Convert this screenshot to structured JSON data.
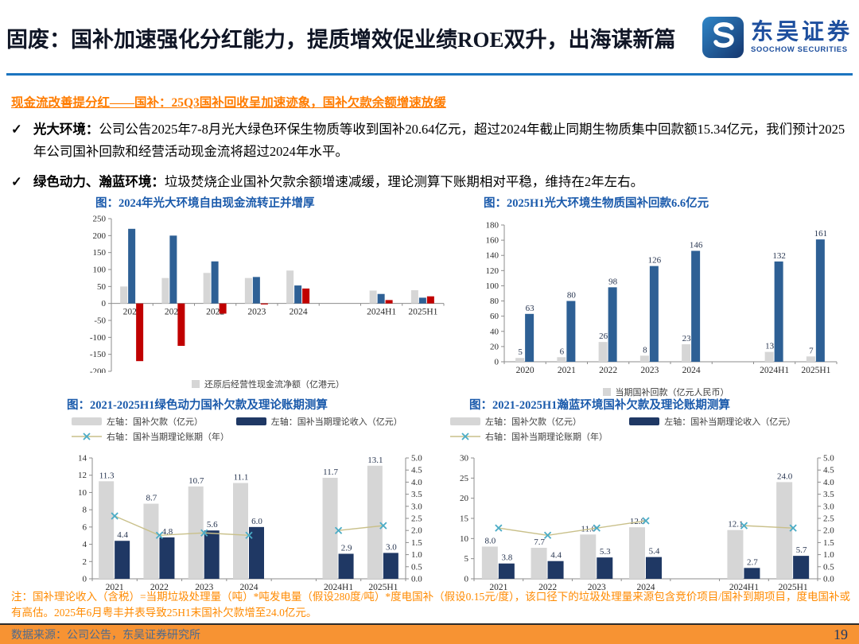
{
  "header": {
    "title": "固废：国补加速强化分红能力，提质增效促业绩ROE双升，出海谋新篇",
    "logo": {
      "cn": "东吴证券",
      "en": "SOOCHOW SECURITIES"
    }
  },
  "section": {
    "subtitle": "现金流改善提分红——国补：25Q3国补回收呈加速迹象，国补欠款余额增速放缓",
    "check_glyph": "✓",
    "bullets": [
      {
        "label": "光大环境：",
        "text": "公司公告2025年7-8月光大绿色环保生物质等收到国补20.64亿元，超过2024年截止同期生物质集中回款额15.34亿元，我们预计2025年公司国补回款和经营活动现金流将超过2024年水平。"
      },
      {
        "label": "绿色动力、瀚蓝环境：",
        "text": "垃圾焚烧企业国补欠款余额增速减缓，理论测算下账期相对平稳，维持在2年左右。"
      }
    ]
  },
  "chart_data": [
    {
      "type": "bar",
      "title": "图：2024年光大环境自由现金流转正并增厚",
      "categories": [
        "2020",
        "2021",
        "2022",
        "2023",
        "2024",
        "",
        "2024H1",
        "2025H1"
      ],
      "series": [
        {
          "name": "还原后经营性现金流净额（亿港元）",
          "color": "#d6d6d6",
          "in_legend": true,
          "labels": false,
          "values": [
            50,
            75,
            90,
            75,
            97,
            null,
            38,
            39
          ]
        },
        {
          "name": "",
          "color": "#2e6095",
          "labels": false,
          "values": [
            220,
            200,
            124,
            78,
            53,
            null,
            28,
            17
          ]
        },
        {
          "name": "",
          "color": "#c00000",
          "labels": false,
          "values": [
            -170,
            -125,
            -30,
            -3,
            44,
            null,
            10,
            21
          ]
        }
      ],
      "ylim": [
        -200,
        250
      ],
      "ystep": 50,
      "grid": false,
      "legend_position": "bottom"
    },
    {
      "type": "bar",
      "title": "图：2025H1光大环境生物质国补回款6.6亿元",
      "categories": [
        "2020",
        "2021",
        "2022",
        "2023",
        "2024",
        "",
        "2024H1",
        "2025H1"
      ],
      "series": [
        {
          "name": "当期国补回款（亿元人民币）",
          "color": "#d6d6d6",
          "in_legend": true,
          "labels": true,
          "label_decimals": 0,
          "values": [
            5,
            6,
            26,
            8,
            23,
            null,
            13,
            7
          ]
        },
        {
          "name": "",
          "color": "#2e6095",
          "labels": true,
          "label_decimals": 0,
          "values": [
            63,
            80,
            98,
            126,
            146,
            null,
            132,
            161
          ]
        }
      ],
      "ylim": [
        0,
        180
      ],
      "ystep": 20,
      "grid": false,
      "legend_position": "bottom"
    },
    {
      "type": "bar-line",
      "title": "图：2021-2025H1绿色动力国补欠款及理论账期测算",
      "categories": [
        "2021",
        "2022",
        "2023",
        "2024",
        "",
        "2024H1",
        "2025H1"
      ],
      "series": [
        {
          "name": "左轴：国补欠款（亿元）",
          "color": "#d6d6d6",
          "in_legend": true,
          "labels": true,
          "label_decimals": 1,
          "values": [
            11.3,
            8.7,
            10.7,
            11.1,
            null,
            11.7,
            13.1
          ]
        },
        {
          "name": "左轴：国补当期理论收入（亿元）",
          "color": "#1f3864",
          "in_legend": true,
          "labels": true,
          "label_decimals": 1,
          "values": [
            4.4,
            4.8,
            5.6,
            6.0,
            null,
            2.9,
            3.0
          ]
        }
      ],
      "line_series": {
        "name": "右轴：国补当期理论账期（年）",
        "line_color": "#c9c08a",
        "marker_color": "#4bacc6",
        "values": [
          2.6,
          1.8,
          1.9,
          1.8,
          null,
          2.0,
          2.2
        ]
      },
      "ylim": [
        0,
        14
      ],
      "ystep": 2,
      "y2lim": [
        0,
        5
      ],
      "y2step": 0.5,
      "grid": false,
      "legend_position": "top"
    },
    {
      "type": "bar-line",
      "title": "图：2021-2025H1瀚蓝环境国补欠款及理论账期测算",
      "categories": [
        "2021",
        "2022",
        "2023",
        "2024",
        "",
        "2024H1",
        "2025H1"
      ],
      "series": [
        {
          "name": "左轴：国补欠款（亿元）",
          "color": "#d6d6d6",
          "in_legend": true,
          "labels": true,
          "label_decimals": 1,
          "values": [
            8.0,
            7.7,
            11.0,
            12.8,
            null,
            12.1,
            24.0
          ]
        },
        {
          "name": "左轴：国补当期理论收入（亿元）",
          "color": "#1f3864",
          "in_legend": true,
          "labels": true,
          "label_decimals": 1,
          "values": [
            3.8,
            4.4,
            5.3,
            5.4,
            null,
            2.7,
            5.7
          ]
        }
      ],
      "line_series": {
        "name": "右轴：国补当期理论账期（年）",
        "line_color": "#c9c08a",
        "marker_color": "#4bacc6",
        "values": [
          2.1,
          1.8,
          2.1,
          2.4,
          null,
          2.2,
          2.1
        ]
      },
      "ylim": [
        0,
        30
      ],
      "ystep": 5,
      "y2lim": [
        0,
        5
      ],
      "y2step": 0.5,
      "grid": false,
      "legend_position": "top"
    }
  ],
  "footer": {
    "note": "注：国补理论收入（含税）=当期垃圾处理量（吨）*吨发电量（假设280度/吨）*度电国补（假设0.15元/度），该口径下的垃圾处理量来源包含竞价项目/国补到期项目，度电国补或有高估。2025年6月粤丰并表导致25H1末国补欠款增至24.0亿元。",
    "source": "数据来源：公司公告，东吴证券研究所",
    "page": "19"
  },
  "colors": {
    "divider_blue": "#1b74c0",
    "title_text": "#101626",
    "chart_title": "#1a5aab",
    "subtitle_orange": "#ff7c00",
    "note_orange": "#ff8a00",
    "footer_bar": "#f79333",
    "footer_text": "#4c6a8f",
    "page_number": "#1f3864",
    "brand_blue": "#1e4f9e",
    "bar_gray": "#d6d6d6",
    "bar_steel_blue": "#2e6095",
    "bar_red": "#c00000",
    "bar_navy": "#1f3864",
    "line_tan": "#c9c08a",
    "marker_cyan": "#4bacc6",
    "axis_gray": "#8c8c8c"
  }
}
